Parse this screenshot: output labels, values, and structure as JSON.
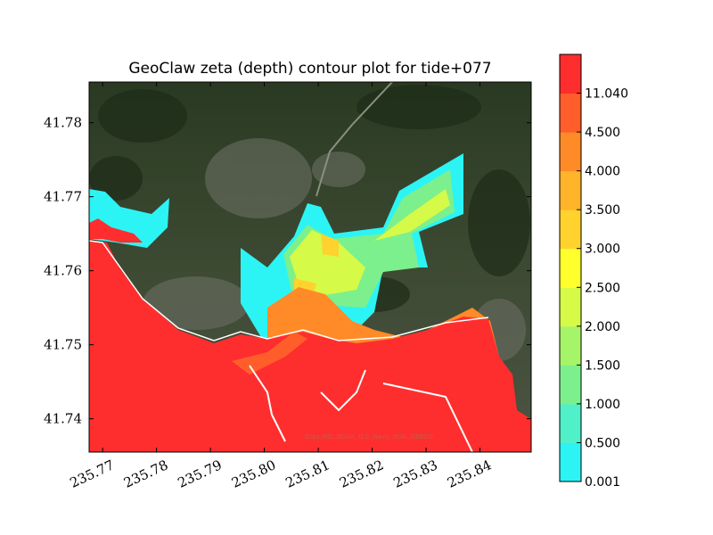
{
  "chart_data": {
    "type": "heatmap",
    "title": "GeoClaw zeta (depth) contour plot for tide+077",
    "xlabel": "",
    "ylabel": "",
    "xlim": [
      235.7675,
      235.8495
    ],
    "ylim": [
      41.7355,
      41.7855
    ],
    "x_ticks": [
      235.77,
      235.78,
      235.79,
      235.8,
      235.81,
      235.82,
      235.83,
      235.84
    ],
    "x_tick_labels": [
      "235.77",
      "235.78",
      "235.79",
      "235.80",
      "235.81",
      "235.82",
      "235.83",
      "235.84"
    ],
    "y_ticks": [
      41.74,
      41.75,
      41.76,
      41.77,
      41.78
    ],
    "y_tick_labels": [
      "41.74",
      "41.75",
      "41.76",
      "41.77",
      "41.78"
    ],
    "colorbar": {
      "levels": [
        0.001,
        0.5,
        1.0,
        1.5,
        2.0,
        2.5,
        3.0,
        3.5,
        4.0,
        4.5,
        11.04
      ],
      "labels": [
        "0.001",
        "0.500",
        "1.000",
        "1.500",
        "2.000",
        "2.500",
        "3.000",
        "3.500",
        "4.000",
        "4.500",
        "11.040"
      ],
      "colors": [
        "#2cf4f4",
        "#50f0c8",
        "#7cf08c",
        "#a6f468",
        "#d6fa48",
        "#ffff2e",
        "#ffd22e",
        "#ffb42a",
        "#ff8a28",
        "#ff5e2a",
        "#ff2e2e"
      ]
    },
    "background": "satellite imagery",
    "attribution": "Data SIO, NOAA, U.S. Navy, NGA, GEBCO"
  }
}
